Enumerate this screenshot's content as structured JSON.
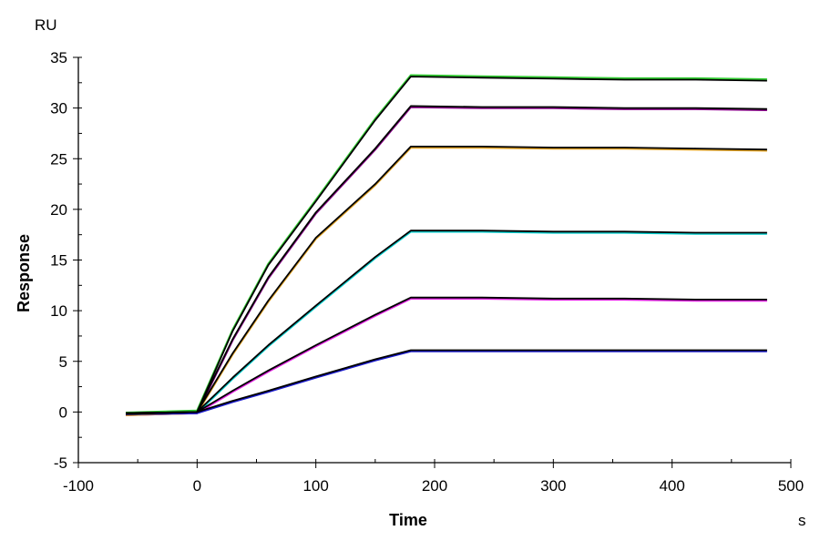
{
  "chart_data": {
    "type": "line",
    "title": "",
    "xlabel": "Time",
    "xunit": "s",
    "ylabel": "Response",
    "yunit": "RU",
    "xlim": [
      -100,
      500
    ],
    "ylim": [
      -5,
      35
    ],
    "xticks": [
      -100,
      0,
      100,
      200,
      300,
      400,
      500
    ],
    "yticks": [
      -5,
      0,
      5,
      10,
      15,
      20,
      25,
      30,
      35
    ],
    "grid": false,
    "legend": "none",
    "fit_color": "#000000",
    "x": [
      -60,
      0,
      30,
      60,
      100,
      150,
      180,
      240,
      300,
      360,
      420,
      480
    ],
    "series": [
      {
        "color": "#33cc33",
        "values": [
          -0.2,
          0,
          8.0,
          14.5,
          20.8,
          28.8,
          33.1,
          33.0,
          32.9,
          32.8,
          32.8,
          32.7
        ]
      },
      {
        "color": "#8b008b",
        "values": [
          -0.2,
          0,
          7.2,
          13.3,
          19.7,
          26.0,
          30.2,
          30.1,
          30.1,
          30.0,
          30.0,
          29.9
        ]
      },
      {
        "color": "#e0a020",
        "values": [
          -0.2,
          0,
          5.8,
          11.0,
          17.2,
          22.5,
          26.2,
          26.2,
          26.1,
          26.1,
          26.0,
          25.9
        ]
      },
      {
        "color": "#00cccc",
        "values": [
          -0.1,
          0,
          3.4,
          6.6,
          10.5,
          15.3,
          17.9,
          17.9,
          17.8,
          17.8,
          17.7,
          17.7
        ]
      },
      {
        "color": "#e020e0",
        "values": [
          -0.1,
          0,
          2.1,
          4.1,
          6.6,
          9.6,
          11.3,
          11.3,
          11.2,
          11.2,
          11.1,
          11.1
        ]
      },
      {
        "color": "#1a1acc",
        "values": [
          -0.1,
          0,
          1.1,
          2.1,
          3.5,
          5.2,
          6.1,
          6.1,
          6.1,
          6.1,
          6.1,
          6.1
        ]
      }
    ]
  }
}
